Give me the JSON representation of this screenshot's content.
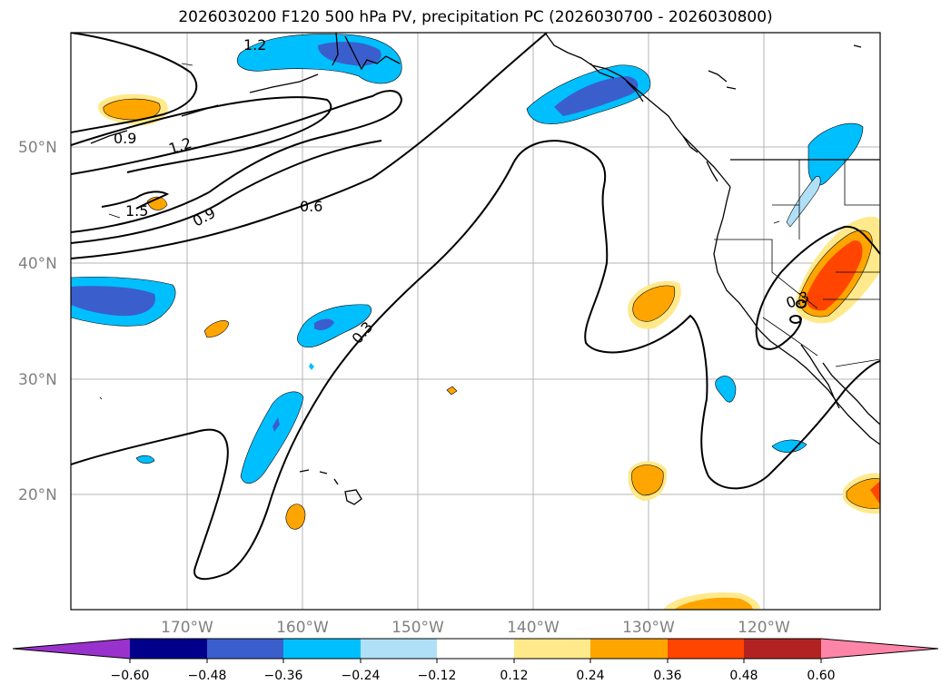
{
  "title": "2026030200 F120 500 hPa PV, precipitation PC (2026030700 - 2026030800)",
  "lat_labels": [
    "50°N",
    "40°N",
    "30°N",
    "20°N"
  ],
  "lon_labels": [
    "170°W",
    "160°W",
    "150°W",
    "140°W",
    "130°W",
    "120°W"
  ],
  "contour_labels": [
    "1.2",
    "0.9",
    "1.2",
    "1.5",
    "0.9",
    "0.6",
    "0.3",
    "0.3"
  ],
  "colorbar": {
    "ticks": [
      "−0.60",
      "−0.48",
      "−0.36",
      "−0.24",
      "−0.12",
      "0.12",
      "0.24",
      "0.36",
      "0.48",
      "0.60"
    ],
    "colors": [
      "#9932cc",
      "#00008b",
      "#3a5fcd",
      "#00bfff",
      "#b0e0f8",
      "#ffffff",
      "#ffe98a",
      "#ffa500",
      "#ff4500",
      "#b22222",
      "#ff85a8"
    ]
  }
}
